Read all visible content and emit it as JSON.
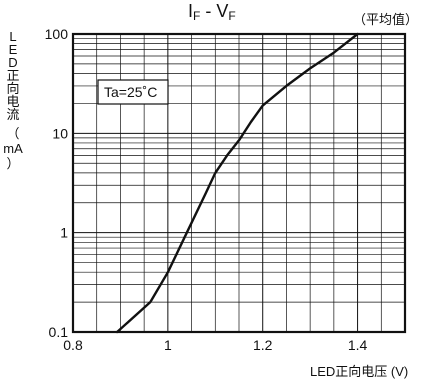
{
  "chart_data": {
    "type": "line",
    "title_main": "I",
    "title_main_sub": "F",
    "title_sep": " - V",
    "title_sep_sub": "F",
    "note": "（平均值）",
    "xlabel": "LED正向电压 (V)",
    "ylabel_chars": [
      "L",
      "E",
      "D",
      "正",
      "向",
      "电",
      "流",
      "（",
      "mA",
      "）"
    ],
    "annotation": "Ta=25˚C",
    "x_ticks": [
      {
        "value": 0.8,
        "label": "0.8"
      },
      {
        "value": 1.0,
        "label": "1"
      },
      {
        "value": 1.2,
        "label": "1.2"
      },
      {
        "value": 1.4,
        "label": "1.4"
      }
    ],
    "y_ticks": [
      {
        "value": 0.1,
        "label": "0.1"
      },
      {
        "value": 1,
        "label": "1"
      },
      {
        "value": 10,
        "label": "10"
      },
      {
        "value": 100,
        "label": "100"
      }
    ],
    "xlim": [
      0.8,
      1.5
    ],
    "ylim": [
      0.1,
      100
    ],
    "y_scale": "log",
    "grid": true,
    "series": [
      {
        "x": [
          0.893,
          0.963,
          1.0,
          1.04,
          1.08,
          1.1,
          1.125,
          1.15,
          1.175,
          1.2,
          1.25,
          1.3,
          1.35,
          1.4
        ],
        "y": [
          0.1,
          0.2,
          0.4,
          1.0,
          2.5,
          4.0,
          6.0,
          8.5,
          13.0,
          19.0,
          30.0,
          45.0,
          65.0,
          100.0
        ],
        "color": "#111111"
      }
    ]
  }
}
